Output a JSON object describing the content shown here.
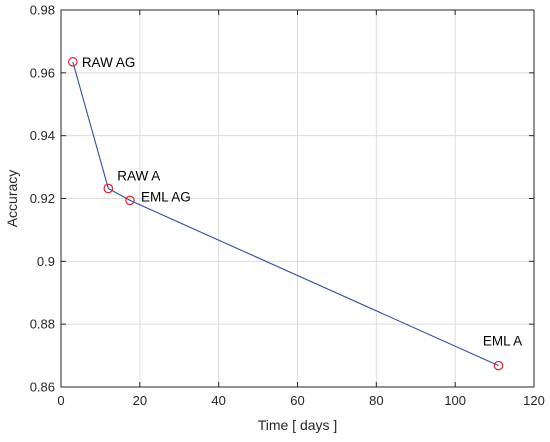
{
  "chart_data": {
    "type": "line",
    "xlabel": "Time [ days ]",
    "ylabel": "Accuracy",
    "xlim": [
      0,
      120
    ],
    "ylim": [
      0.86,
      0.98
    ],
    "xticks": [
      0,
      20,
      40,
      60,
      80,
      100,
      120
    ],
    "yticks": [
      0.86,
      0.88,
      0.9,
      0.92,
      0.94,
      0.96,
      0.98
    ],
    "xtick_labels": [
      "0",
      "20",
      "40",
      "60",
      "80",
      "100",
      "120"
    ],
    "ytick_labels": [
      "0.86",
      "0.88",
      "0.9",
      "0.92",
      "0.94",
      "0.96",
      "0.98"
    ],
    "grid": true,
    "series": [
      {
        "x": [
          3,
          12,
          17.5,
          111
        ],
        "y": [
          0.9635,
          0.9232,
          0.9194,
          0.8668
        ],
        "point_labels": [
          "RAW AG",
          "RAW A",
          "EML AG",
          "EML A"
        ],
        "color": "#2e4fa3",
        "marker": "circle",
        "marker_color": "#e0202a"
      }
    ]
  }
}
